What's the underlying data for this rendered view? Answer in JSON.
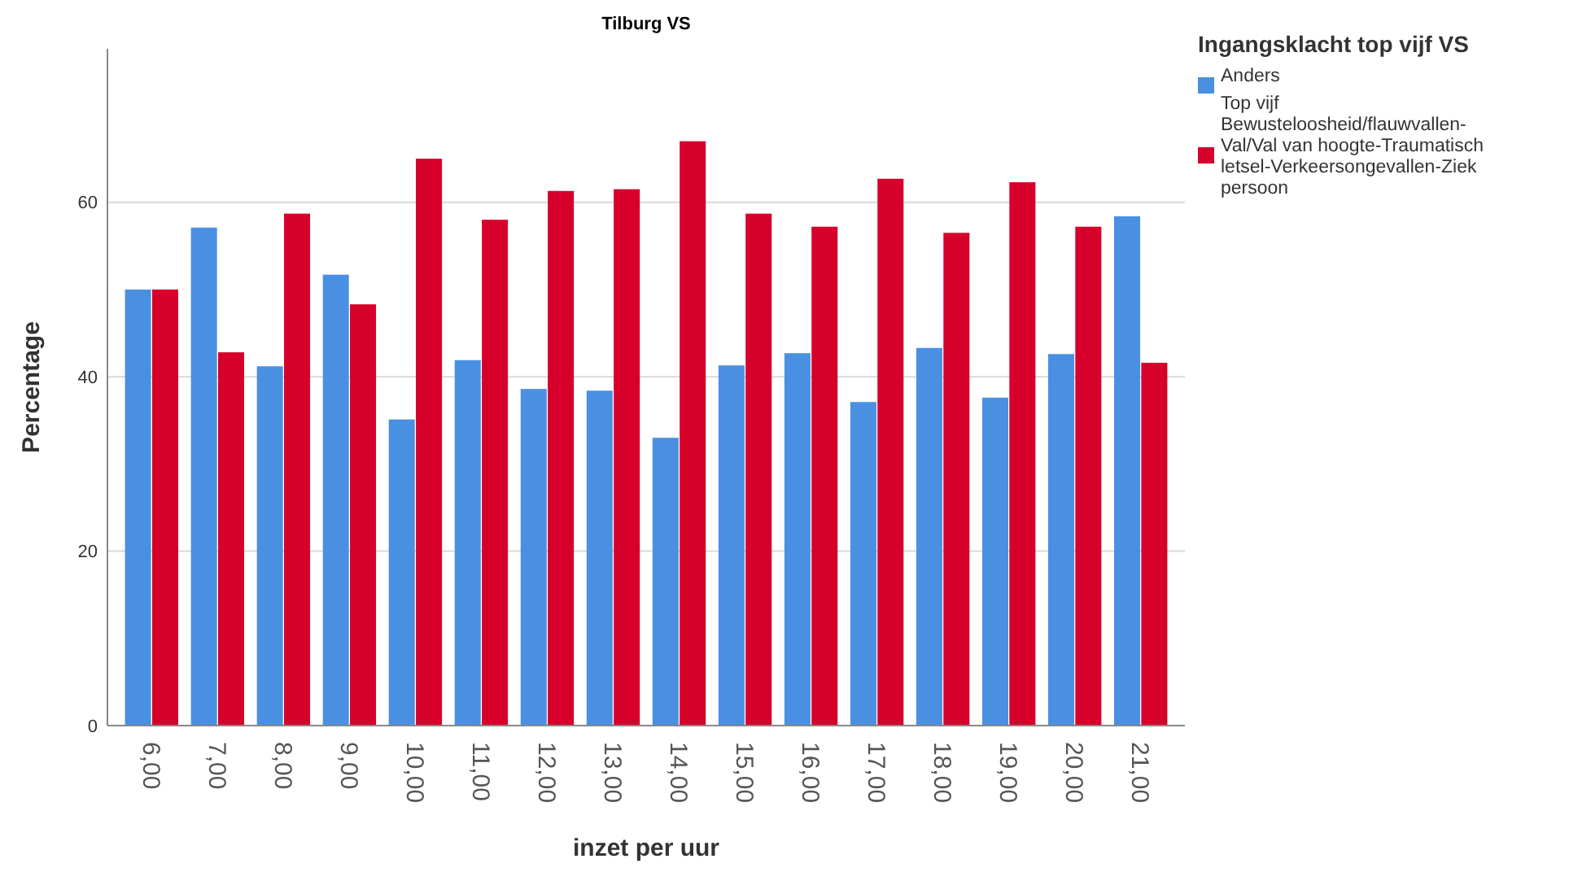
{
  "chart_data": {
    "type": "bar",
    "title": "Tilburg VS",
    "xlabel": "inzet per uur",
    "ylabel": "Percentage",
    "legend_title": "Ingangsklacht top vijf VS",
    "categories": [
      "6,00",
      "7,00",
      "8,00",
      "9,00",
      "10,00",
      "11,00",
      "12,00",
      "13,00",
      "14,00",
      "15,00",
      "16,00",
      "17,00",
      "18,00",
      "19,00",
      "20,00",
      "21,00"
    ],
    "series": [
      {
        "name": "Anders",
        "color": "#4a90e2",
        "values": [
          50,
          57.1,
          41.2,
          51.7,
          35.1,
          41.9,
          38.6,
          38.4,
          33.0,
          41.3,
          42.7,
          37.1,
          43.3,
          37.6,
          42.6,
          58.4
        ]
      },
      {
        "name": "Top vijf Bewusteloosheid/flauwvallen-Val/Val van hoogte-Traumatisch letsel-Verkeersongevallen-Ziek persoon",
        "color": "#d6002a",
        "values": [
          50,
          42.8,
          58.7,
          48.3,
          65,
          58.0,
          61.3,
          61.5,
          67,
          58.7,
          57.2,
          62.7,
          56.5,
          62.3,
          57.2,
          41.6
        ]
      }
    ],
    "ylim": [
      0,
      77.6
    ],
    "yticks": [
      0,
      20,
      40,
      60
    ],
    "grid": "y",
    "legend": "right"
  }
}
